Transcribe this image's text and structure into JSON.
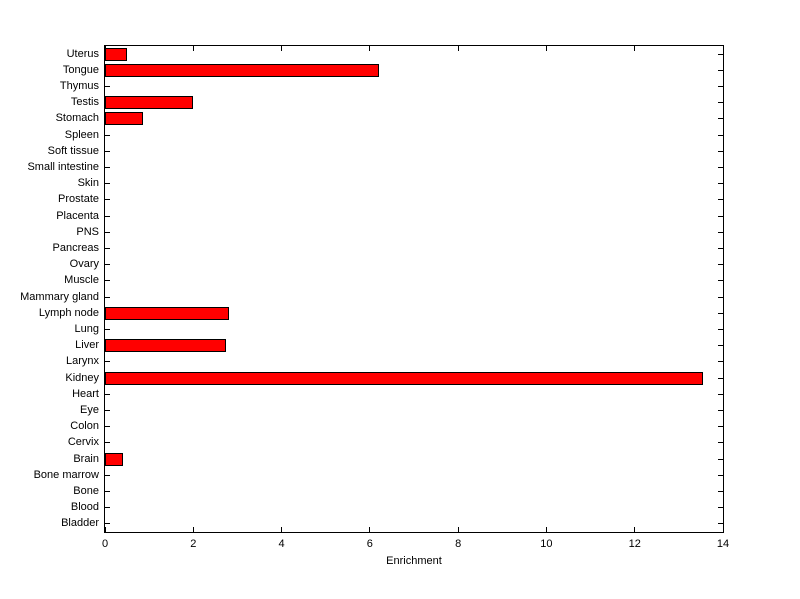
{
  "chart_data": {
    "type": "bar",
    "orientation": "horizontal",
    "title": "",
    "xlabel": "Enrichment",
    "ylabel": "",
    "xlim": [
      0,
      14
    ],
    "xticks": [
      0,
      2,
      4,
      6,
      8,
      10,
      12,
      14
    ],
    "grid": false,
    "legend": "none",
    "bar_color": "#FF0000",
    "bar_edge_color": "#000000",
    "axis_color": "#000000",
    "background_color": "#FFFFFF",
    "categories": [
      "Uterus",
      "Tongue",
      "Thymus",
      "Testis",
      "Stomach",
      "Spleen",
      "Soft tissue",
      "Small intestine",
      "Skin",
      "Prostate",
      "Placenta",
      "PNS",
      "Pancreas",
      "Ovary",
      "Muscle",
      "Mammary gland",
      "Lymph node",
      "Lung",
      "Liver",
      "Larynx",
      "Kidney",
      "Heart",
      "Eye",
      "Colon",
      "Cervix",
      "Brain",
      "Bone marrow",
      "Bone",
      "Blood",
      "Bladder"
    ],
    "values": [
      0.5,
      6.2,
      0,
      2.0,
      0.85,
      0,
      0,
      0,
      0,
      0,
      0,
      0,
      0,
      0,
      0,
      0,
      2.8,
      0,
      2.75,
      0,
      13.55,
      0,
      0,
      0,
      0,
      0.4,
      0,
      0,
      0,
      0
    ]
  }
}
